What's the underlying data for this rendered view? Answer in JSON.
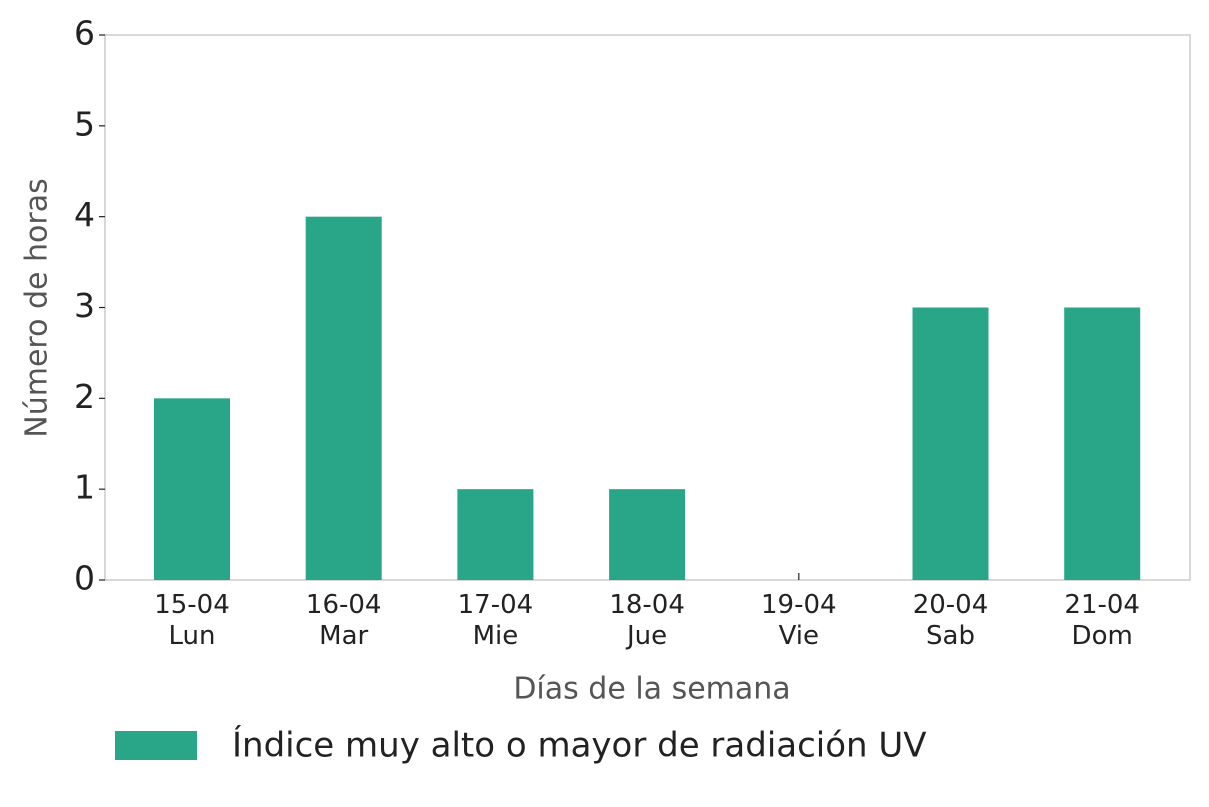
{
  "chart_data": {
    "type": "bar",
    "x_label": "Días de la semana",
    "y_label": "Número de horas",
    "categories": [
      "15-04\nLun",
      "16-04\nMar",
      "17-04\nMie",
      "18-04\nJue",
      "19-04\nVie",
      "20-04\nSab",
      "21-04\nDom"
    ],
    "series": [
      {
        "name": "Índice muy alto o mayor de radiación UV",
        "color": "#29a687",
        "values": [
          2,
          4,
          1,
          1,
          0,
          3,
          3
        ]
      }
    ],
    "ylim": [
      0,
      6
    ],
    "yticks": [
      0,
      1,
      2,
      3,
      4,
      5,
      6
    ],
    "legend": "bottom"
  }
}
